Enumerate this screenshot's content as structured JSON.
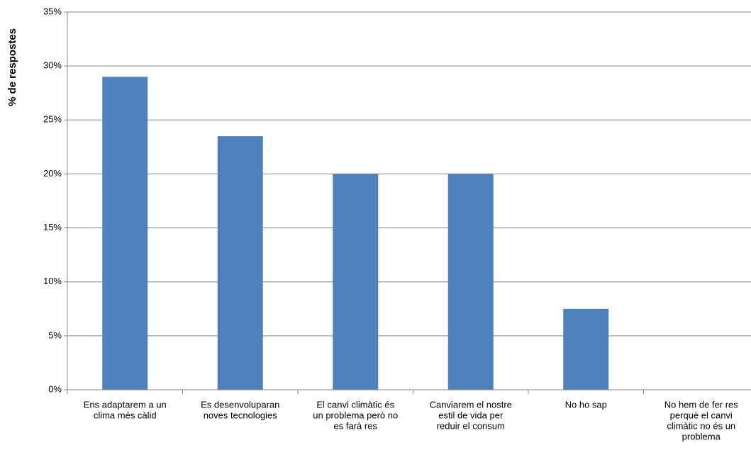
{
  "chart_data": {
    "type": "bar",
    "ylabel": "% de respostes",
    "categories": [
      [
        "Ens adaptarem a un",
        "clima més càlid"
      ],
      [
        "Es desenvoluparan",
        "noves tecnologies"
      ],
      [
        "El canvi climàtic és",
        "un problema però no",
        "es farà res"
      ],
      [
        "Canviarem el nostre",
        "estil de vida per",
        "reduir el consum"
      ],
      [
        "No ho sap"
      ],
      [
        "No hem de fer res",
        "perquè el canvi",
        "climàtic no és un",
        "problema"
      ]
    ],
    "values": [
      29,
      23.5,
      20,
      20,
      7.5,
      0
    ],
    "color": "#4f81bd",
    "ylim": [
      0,
      35
    ],
    "yticks": [
      {
        "value": 0,
        "label": "0%"
      },
      {
        "value": 5,
        "label": "5%"
      },
      {
        "value": 10,
        "label": "10%"
      },
      {
        "value": 15,
        "label": "15%"
      },
      {
        "value": 20,
        "label": "20%"
      },
      {
        "value": 25,
        "label": "25%"
      },
      {
        "value": 30,
        "label": "30%"
      },
      {
        "value": 35,
        "label": "35%"
      }
    ],
    "grid": true
  }
}
